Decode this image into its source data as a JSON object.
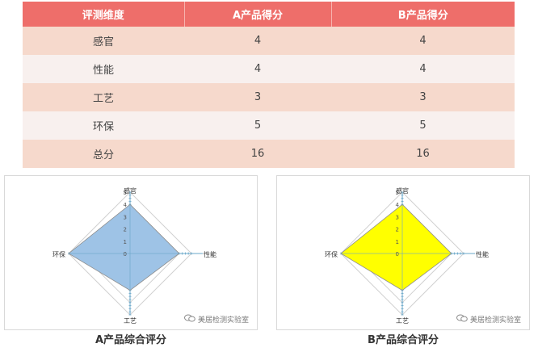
{
  "table": {
    "headers": [
      "评测维度",
      "A产品得分",
      "B产品得分"
    ],
    "rows": [
      [
        "感官",
        "4",
        "4"
      ],
      [
        "性能",
        "4",
        "4"
      ],
      [
        "工艺",
        "3",
        "3"
      ],
      [
        "环保",
        "5",
        "5"
      ],
      [
        "总分",
        "16",
        "16"
      ]
    ]
  },
  "watermark": "美居检测实验室",
  "colors": {
    "header_bg": "#ee6e6a",
    "row_dark": "#f6d9cc",
    "row_light": "#f8f0ee",
    "a_fill": "#9ec3e6",
    "b_fill": "#ffff00"
  },
  "chart_data": [
    {
      "type": "radar",
      "title": "A产品综合评分",
      "axes": [
        "感官",
        "性能",
        "工艺",
        "环保"
      ],
      "values": [
        4,
        4,
        3,
        5
      ],
      "range": [
        0,
        5
      ],
      "ticks": [
        "0",
        "1",
        "2",
        "3",
        "4",
        "5"
      ],
      "fill": "#9ec3e6",
      "grid": true
    },
    {
      "type": "radar",
      "title": "B产品综合评分",
      "axes": [
        "感官",
        "性能",
        "工艺",
        "环保"
      ],
      "values": [
        4,
        4,
        3,
        5
      ],
      "range": [
        0,
        5
      ],
      "ticks": [
        "0",
        "1",
        "2",
        "3",
        "4",
        "5"
      ],
      "fill": "#ffff00",
      "grid": true
    }
  ]
}
